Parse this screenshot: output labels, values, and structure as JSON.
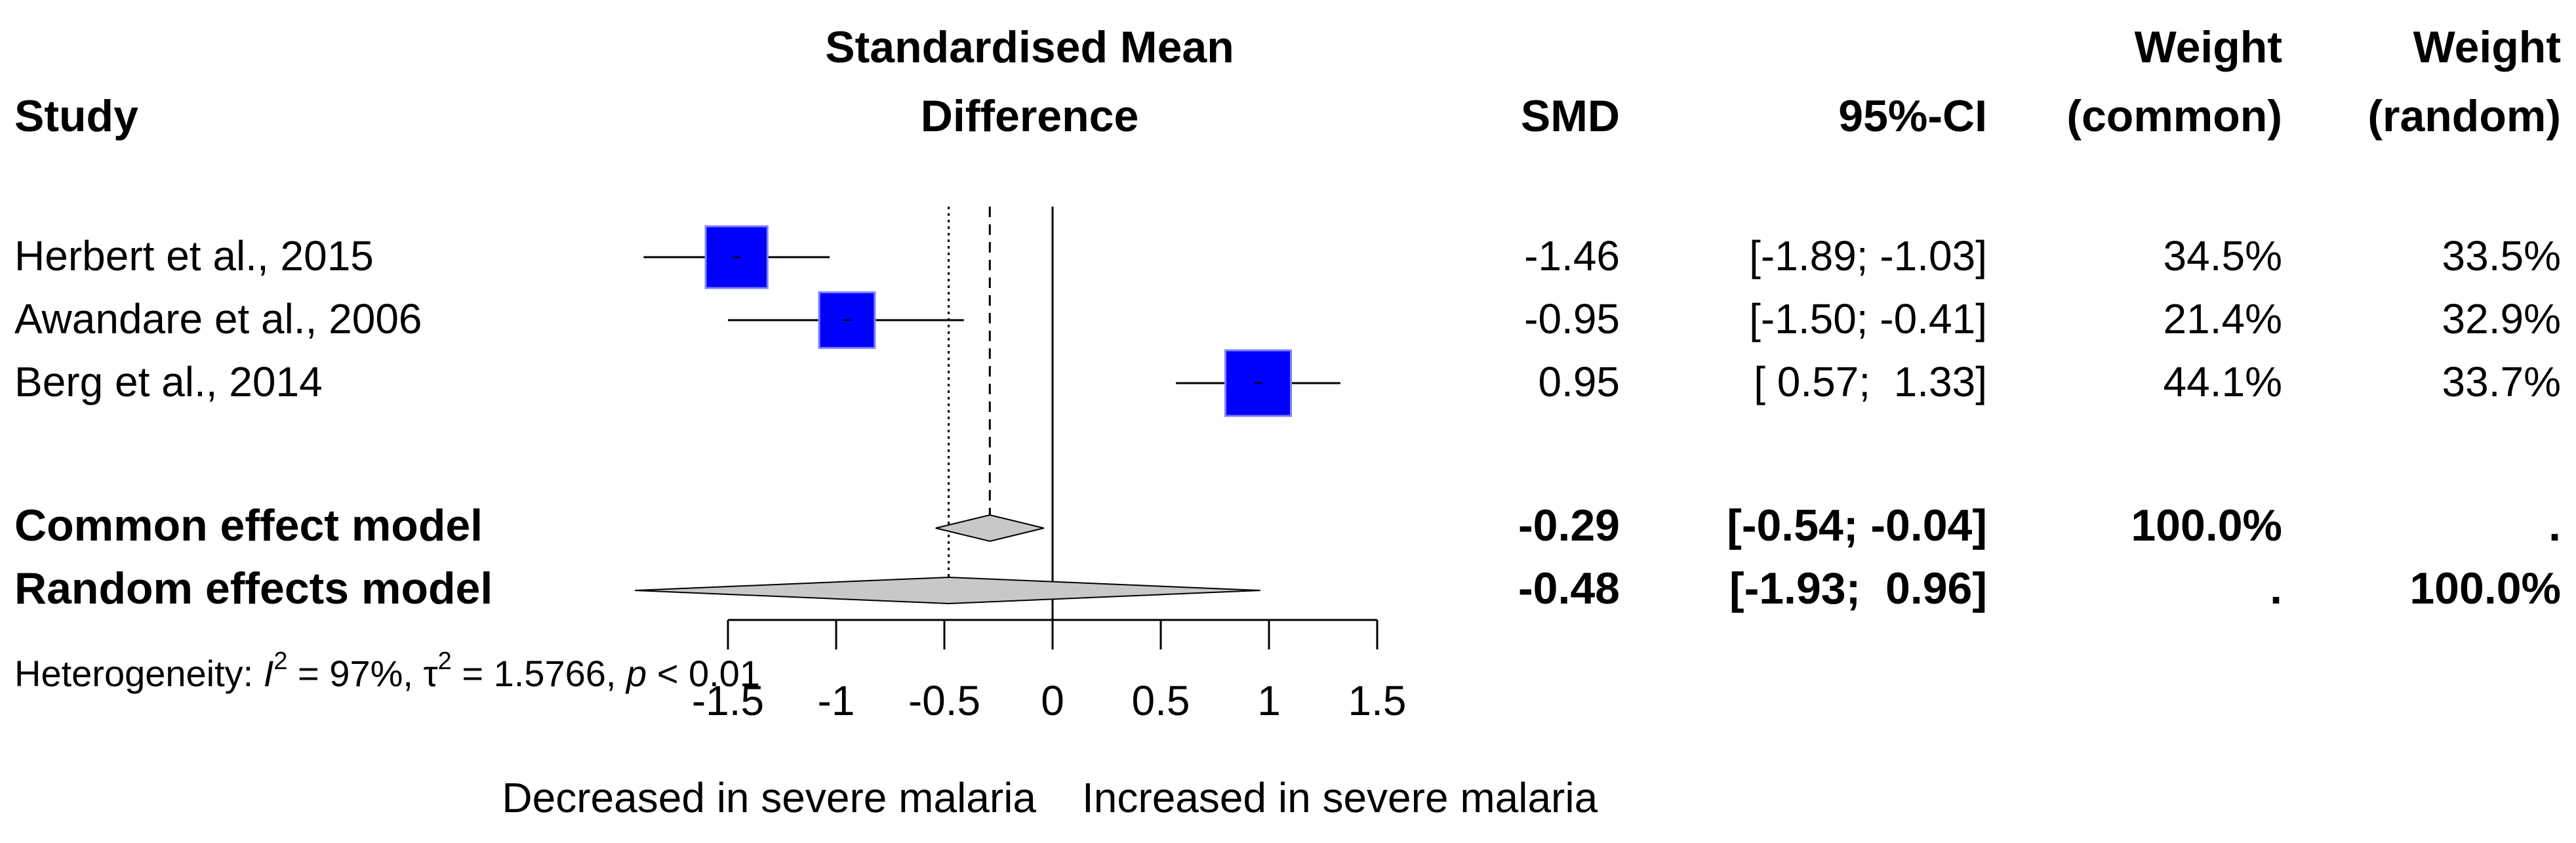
{
  "chart_data": {
    "type": "forest",
    "headers": {
      "study": "Study",
      "effect_line1": "Standardised Mean",
      "effect_line2": "Difference",
      "smd": "SMD",
      "ci": "95%-CI",
      "weight_common_line1": "Weight",
      "weight_common_line2": "(common)",
      "weight_random_line1": "Weight",
      "weight_random_line2": "(random)"
    },
    "studies": [
      {
        "name": "Herbert et al., 2015",
        "smd": -1.46,
        "lower": -1.89,
        "upper": -1.03,
        "smd_text": "-1.46",
        "ci_text": "[-1.89; -1.03]",
        "w_common_text": "34.5%",
        "w_random_text": "33.5%",
        "w_common": 34.5
      },
      {
        "name": "Awandare et al., 2006",
        "smd": -0.95,
        "lower": -1.5,
        "upper": -0.41,
        "smd_text": "-0.95",
        "ci_text": "[-1.50; -0.41]",
        "w_common_text": "21.4%",
        "w_random_text": "32.9%",
        "w_common": 21.4
      },
      {
        "name": "Berg et al., 2014",
        "smd": 0.95,
        "lower": 0.57,
        "upper": 1.33,
        "smd_text": "0.95",
        "ci_text": "[ 0.57;  1.33]",
        "w_common_text": "44.1%",
        "w_random_text": "33.7%",
        "w_common": 44.1
      }
    ],
    "pooled": [
      {
        "name": "Common effect model",
        "smd": -0.29,
        "lower": -0.54,
        "upper": -0.04,
        "smd_text": "-0.29",
        "ci_text": "[-0.54; -0.04]",
        "w_common_text": "100.0%",
        "w_random_text": "."
      },
      {
        "name": "Random effects model",
        "smd": -0.48,
        "lower": -1.93,
        "upper": 0.96,
        "smd_text": "-0.48",
        "ci_text": "[-1.93;  0.96]",
        "w_common_text": ".",
        "w_random_text": "100.0%"
      }
    ],
    "heterogeneity": {
      "prefix": "Heterogeneity: ",
      "i2_label": "I",
      "i2_sup": "2",
      "i2_value": " = 97%, ",
      "tau_label": "τ",
      "tau_sup": "2",
      "tau_value": " = 1.5766, ",
      "p_label": "p",
      "p_value": " < 0.01"
    },
    "xaxis": {
      "min": -1.5,
      "max": 1.5,
      "ticks": [
        -1.5,
        -1,
        -0.5,
        0,
        0.5,
        1,
        1.5
      ],
      "tick_labels": [
        "-1.5",
        "-1",
        "-0.5",
        "0",
        "0.5",
        "1",
        "1.5"
      ]
    },
    "label_left": "Decreased in severe malaria",
    "label_right": "Increased in severe malaria",
    "colors": {
      "square": "#0000ff",
      "square_border": "#8080ff",
      "diamond_fill": "#c8c8c8",
      "line": "#000000"
    }
  }
}
